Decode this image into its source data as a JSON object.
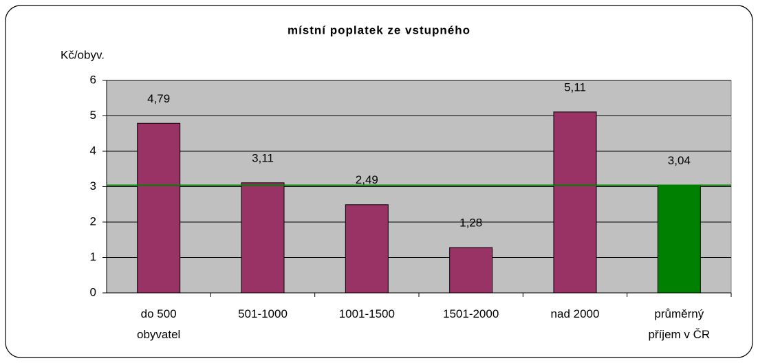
{
  "chart_data": {
    "type": "bar",
    "title": "místní poplatek ze vstupného",
    "y_axis_label": "Kč/obyv.",
    "categories": [
      "do 500\nobyvatel",
      "501-1000",
      "1001-1500",
      "1501-2000",
      "nad 2000",
      "průměrný\npříjem v ČR"
    ],
    "values": [
      4.79,
      3.11,
      2.49,
      1.28,
      5.11,
      3.04
    ],
    "value_labels": [
      "4,79",
      "3,11",
      "2,49",
      "1,28",
      "5,11",
      "3,04"
    ],
    "colors": [
      "#993366",
      "#993366",
      "#993366",
      "#993366",
      "#993366",
      "#008000"
    ],
    "reference_line": {
      "value": 3.04,
      "color": "#008000"
    },
    "ylim": [
      0,
      6
    ],
    "yticks": [
      0,
      1,
      2,
      3,
      4,
      5,
      6
    ],
    "grid": true
  }
}
